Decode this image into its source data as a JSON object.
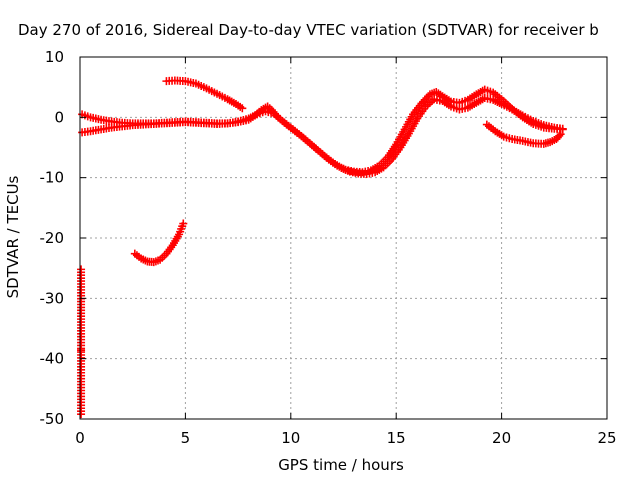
{
  "chart_data": {
    "type": "scatter",
    "title": "Day 270 of 2016, Sidereal Day-to-day VTEC variation (SDTVAR) for receiver b",
    "xlabel": "GPS time / hours",
    "ylabel": "SDTVAR / TECUs",
    "xlim": [
      0,
      25
    ],
    "ylim": [
      -50,
      10
    ],
    "x_ticks": [
      0,
      5,
      10,
      15,
      20,
      25
    ],
    "y_ticks": [
      -50,
      -40,
      -30,
      -20,
      -10,
      0,
      10
    ],
    "x_tick_labels": [
      "0",
      "5",
      "10",
      "15",
      "20",
      "25"
    ],
    "y_tick_labels": [
      "-50",
      "-40",
      "-30",
      "-20",
      "-10",
      "0",
      "10"
    ],
    "grid": true,
    "legend": "none",
    "marker": "plus",
    "color": "#ff0000",
    "series": [
      {
        "values_xy": [
          [
            0.1,
            0.5
          ],
          [
            0.5,
            0.0
          ],
          [
            1.0,
            -0.4
          ],
          [
            1.5,
            -0.7
          ],
          [
            2.0,
            -0.9
          ],
          [
            2.5,
            -1.0
          ],
          [
            3.0,
            -1.0
          ],
          [
            3.5,
            -1.0
          ],
          [
            4.0,
            -0.9
          ],
          [
            4.5,
            -0.8
          ],
          [
            5.0,
            -0.7
          ],
          [
            5.5,
            -0.8
          ],
          [
            6.0,
            -0.9
          ],
          [
            6.5,
            -1.0
          ],
          [
            7.0,
            -1.0
          ],
          [
            7.5,
            -0.8
          ],
          [
            8.0,
            -0.4
          ],
          [
            8.3,
            0.3
          ],
          [
            8.6,
            1.2
          ],
          [
            8.9,
            1.8
          ],
          [
            9.1,
            1.2
          ],
          [
            9.4,
            0.0
          ],
          [
            9.8,
            -1.2
          ],
          [
            10.2,
            -2.3
          ],
          [
            10.6,
            -3.4
          ],
          [
            11.0,
            -4.6
          ],
          [
            11.4,
            -5.8
          ],
          [
            11.8,
            -7.0
          ],
          [
            12.2,
            -8.0
          ],
          [
            12.6,
            -8.7
          ],
          [
            13.0,
            -9.0
          ],
          [
            13.4,
            -9.1
          ],
          [
            13.8,
            -8.8
          ],
          [
            14.2,
            -8.0
          ],
          [
            14.6,
            -6.6
          ],
          [
            15.0,
            -4.5
          ],
          [
            15.4,
            -2.0
          ],
          [
            15.8,
            0.5
          ],
          [
            16.2,
            2.3
          ],
          [
            16.6,
            3.8
          ],
          [
            16.9,
            4.2
          ],
          [
            17.2,
            3.5
          ],
          [
            17.6,
            2.6
          ],
          [
            18.0,
            2.4
          ],
          [
            18.4,
            2.9
          ],
          [
            18.8,
            3.8
          ],
          [
            19.2,
            4.6
          ],
          [
            19.6,
            4.1
          ],
          [
            20.0,
            3.0
          ],
          [
            20.5,
            1.4
          ],
          [
            21.0,
            0.0
          ],
          [
            21.5,
            -1.1
          ],
          [
            22.0,
            -1.7
          ],
          [
            22.5,
            -1.9
          ],
          [
            22.9,
            -2.0
          ]
        ]
      },
      {
        "values_xy": [
          [
            0.1,
            -2.5
          ],
          [
            0.5,
            -2.3
          ],
          [
            1.0,
            -2.0
          ],
          [
            1.5,
            -1.7
          ],
          [
            2.0,
            -1.5
          ],
          [
            2.5,
            -1.3
          ],
          [
            3.0,
            -1.2
          ],
          [
            3.5,
            -1.1
          ],
          [
            4.0,
            -1.0
          ],
          [
            4.5,
            -0.9
          ],
          [
            5.0,
            -0.8
          ],
          [
            5.5,
            -0.9
          ],
          [
            6.0,
            -1.0
          ],
          [
            6.5,
            -1.1
          ],
          [
            7.0,
            -1.0
          ],
          [
            7.5,
            -0.7
          ],
          [
            8.0,
            -0.2
          ],
          [
            8.4,
            0.5
          ],
          [
            8.8,
            1.0
          ],
          [
            9.2,
            0.6
          ],
          [
            9.6,
            -0.6
          ],
          [
            10.0,
            -1.7
          ],
          [
            10.4,
            -2.8
          ],
          [
            10.8,
            -4.0
          ],
          [
            11.2,
            -5.2
          ],
          [
            11.6,
            -6.4
          ],
          [
            12.0,
            -7.5
          ],
          [
            12.4,
            -8.4
          ],
          [
            12.8,
            -9.0
          ],
          [
            13.2,
            -9.3
          ],
          [
            13.6,
            -9.4
          ],
          [
            14.0,
            -9.1
          ],
          [
            14.4,
            -8.3
          ],
          [
            14.8,
            -6.9
          ],
          [
            15.2,
            -5.0
          ],
          [
            15.6,
            -2.7
          ],
          [
            16.0,
            -0.2
          ],
          [
            16.4,
            1.8
          ],
          [
            16.8,
            3.0
          ],
          [
            17.2,
            2.7
          ],
          [
            17.6,
            1.8
          ],
          [
            18.0,
            1.3
          ],
          [
            18.4,
            1.6
          ],
          [
            18.8,
            2.4
          ],
          [
            19.2,
            3.2
          ],
          [
            19.6,
            2.9
          ],
          [
            20.0,
            2.2
          ],
          [
            20.5,
            1.3
          ],
          [
            21.0,
            0.3
          ],
          [
            21.5,
            -0.6
          ],
          [
            22.0,
            -1.3
          ],
          [
            22.5,
            -1.7
          ],
          [
            22.9,
            -1.9
          ]
        ]
      },
      {
        "values_xy": [
          [
            4.1,
            6.0
          ],
          [
            4.5,
            6.1
          ],
          [
            5.0,
            6.0
          ],
          [
            5.5,
            5.6
          ],
          [
            6.0,
            4.8
          ],
          [
            6.5,
            3.9
          ],
          [
            7.0,
            3.0
          ],
          [
            7.4,
            2.2
          ],
          [
            7.7,
            1.5
          ]
        ]
      },
      {
        "values_xy": [
          [
            2.6,
            -22.6
          ],
          [
            2.9,
            -23.4
          ],
          [
            3.2,
            -23.9
          ],
          [
            3.5,
            -24.0
          ],
          [
            3.8,
            -23.6
          ],
          [
            4.1,
            -22.6
          ],
          [
            4.4,
            -21.2
          ],
          [
            4.7,
            -19.4
          ],
          [
            4.9,
            -17.6
          ]
        ]
      },
      {
        "values_xy": [
          [
            19.3,
            -1.2
          ],
          [
            19.7,
            -2.3
          ],
          [
            20.1,
            -3.2
          ],
          [
            20.5,
            -3.6
          ],
          [
            21.0,
            -3.9
          ],
          [
            21.5,
            -4.3
          ],
          [
            22.0,
            -4.4
          ],
          [
            22.3,
            -4.1
          ],
          [
            22.6,
            -3.6
          ],
          [
            22.8,
            -2.8
          ]
        ]
      },
      {
        "values_xy": [
          [
            0.05,
            -25.2
          ],
          [
            0.05,
            -38.3
          ],
          [
            0.05,
            -38.9
          ],
          [
            0.05,
            -49.2
          ]
        ]
      }
    ]
  }
}
